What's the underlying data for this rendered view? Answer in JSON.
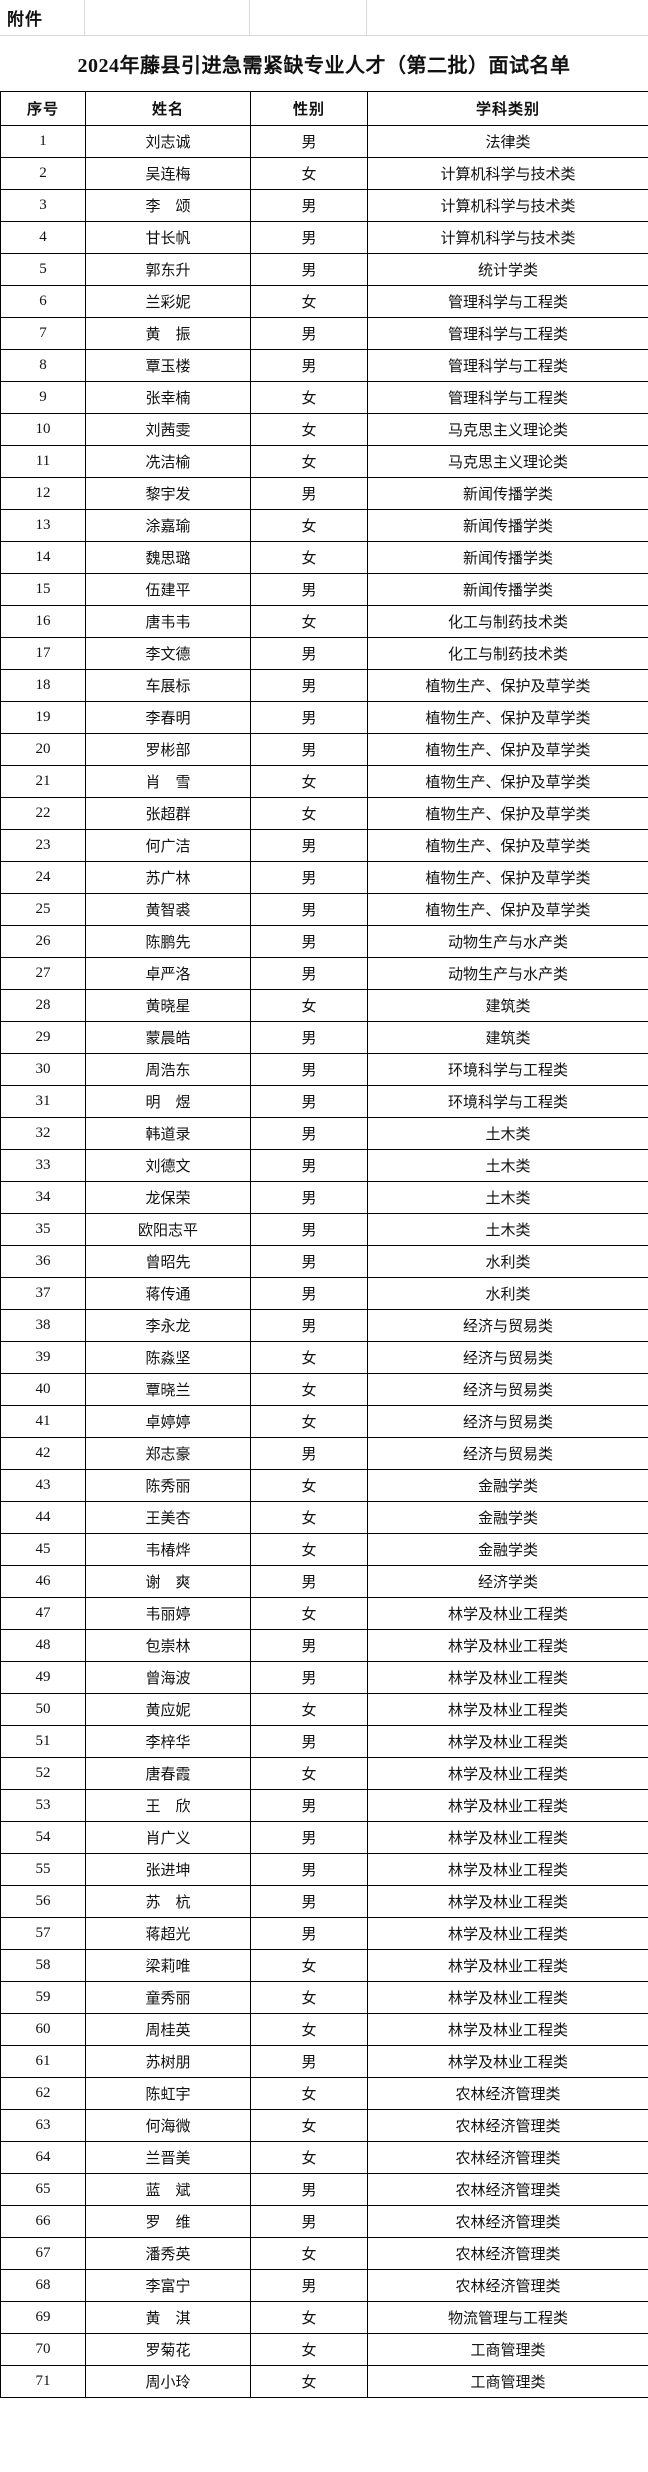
{
  "attachment_label": "附件",
  "title": "2024年藤县引进急需紧缺专业人才（第二批）面试名单",
  "table": {
    "columns": [
      "序号",
      "姓名",
      "性别",
      "学科类别"
    ],
    "rows": [
      [
        "1",
        "刘志诚",
        "男",
        "法律类"
      ],
      [
        "2",
        "吴连梅",
        "女",
        "计算机科学与技术类"
      ],
      [
        "3",
        "李　颂",
        "男",
        "计算机科学与技术类"
      ],
      [
        "4",
        "甘长帆",
        "男",
        "计算机科学与技术类"
      ],
      [
        "5",
        "郭东升",
        "男",
        "统计学类"
      ],
      [
        "6",
        "兰彩妮",
        "女",
        "管理科学与工程类"
      ],
      [
        "7",
        "黄　振",
        "男",
        "管理科学与工程类"
      ],
      [
        "8",
        "覃玉楼",
        "男",
        "管理科学与工程类"
      ],
      [
        "9",
        "张幸楠",
        "女",
        "管理科学与工程类"
      ],
      [
        "10",
        "刘茜雯",
        "女",
        "马克思主义理论类"
      ],
      [
        "11",
        "冼洁榆",
        "女",
        "马克思主义理论类"
      ],
      [
        "12",
        "黎宇发",
        "男",
        "新闻传播学类"
      ],
      [
        "13",
        "涂嘉瑜",
        "女",
        "新闻传播学类"
      ],
      [
        "14",
        "魏思璐",
        "女",
        "新闻传播学类"
      ],
      [
        "15",
        "伍建平",
        "男",
        "新闻传播学类"
      ],
      [
        "16",
        "唐韦韦",
        "女",
        "化工与制药技术类"
      ],
      [
        "17",
        "李文德",
        "男",
        "化工与制药技术类"
      ],
      [
        "18",
        "车展标",
        "男",
        "植物生产、保护及草学类"
      ],
      [
        "19",
        "李春明",
        "男",
        "植物生产、保护及草学类"
      ],
      [
        "20",
        "罗彬部",
        "男",
        "植物生产、保护及草学类"
      ],
      [
        "21",
        "肖　雪",
        "女",
        "植物生产、保护及草学类"
      ],
      [
        "22",
        "张超群",
        "女",
        "植物生产、保护及草学类"
      ],
      [
        "23",
        "何广洁",
        "男",
        "植物生产、保护及草学类"
      ],
      [
        "24",
        "苏广林",
        "男",
        "植物生产、保护及草学类"
      ],
      [
        "25",
        "黄智裘",
        "男",
        "植物生产、保护及草学类"
      ],
      [
        "26",
        "陈鹏先",
        "男",
        "动物生产与水产类"
      ],
      [
        "27",
        "卓严洛",
        "男",
        "动物生产与水产类"
      ],
      [
        "28",
        "黄晓星",
        "女",
        "建筑类"
      ],
      [
        "29",
        "蒙晨皓",
        "男",
        "建筑类"
      ],
      [
        "30",
        "周浩东",
        "男",
        "环境科学与工程类"
      ],
      [
        "31",
        "明　煜",
        "男",
        "环境科学与工程类"
      ],
      [
        "32",
        "韩道录",
        "男",
        "土木类"
      ],
      [
        "33",
        "刘德文",
        "男",
        "土木类"
      ],
      [
        "34",
        "龙保荣",
        "男",
        "土木类"
      ],
      [
        "35",
        "欧阳志平",
        "男",
        "土木类"
      ],
      [
        "36",
        "曾昭先",
        "男",
        "水利类"
      ],
      [
        "37",
        "蒋传通",
        "男",
        "水利类"
      ],
      [
        "38",
        "李永龙",
        "男",
        "经济与贸易类"
      ],
      [
        "39",
        "陈淼坚",
        "女",
        "经济与贸易类"
      ],
      [
        "40",
        "覃晓兰",
        "女",
        "经济与贸易类"
      ],
      [
        "41",
        "卓婷婷",
        "女",
        "经济与贸易类"
      ],
      [
        "42",
        "郑志豪",
        "男",
        "经济与贸易类"
      ],
      [
        "43",
        "陈秀丽",
        "女",
        "金融学类"
      ],
      [
        "44",
        "王美杏",
        "女",
        "金融学类"
      ],
      [
        "45",
        "韦椿烨",
        "女",
        "金融学类"
      ],
      [
        "46",
        "谢　爽",
        "男",
        "经济学类"
      ],
      [
        "47",
        "韦丽婷",
        "女",
        "林学及林业工程类"
      ],
      [
        "48",
        "包崇林",
        "男",
        "林学及林业工程类"
      ],
      [
        "49",
        "曾海波",
        "男",
        "林学及林业工程类"
      ],
      [
        "50",
        "黄应妮",
        "女",
        "林学及林业工程类"
      ],
      [
        "51",
        "李梓华",
        "男",
        "林学及林业工程类"
      ],
      [
        "52",
        "唐春霞",
        "女",
        "林学及林业工程类"
      ],
      [
        "53",
        "王　欣",
        "男",
        "林学及林业工程类"
      ],
      [
        "54",
        "肖广义",
        "男",
        "林学及林业工程类"
      ],
      [
        "55",
        "张进坤",
        "男",
        "林学及林业工程类"
      ],
      [
        "56",
        "苏　杭",
        "男",
        "林学及林业工程类"
      ],
      [
        "57",
        "蒋超光",
        "男",
        "林学及林业工程类"
      ],
      [
        "58",
        "梁莉唯",
        "女",
        "林学及林业工程类"
      ],
      [
        "59",
        "童秀丽",
        "女",
        "林学及林业工程类"
      ],
      [
        "60",
        "周桂英",
        "女",
        "林学及林业工程类"
      ],
      [
        "61",
        "苏树朋",
        "男",
        "林学及林业工程类"
      ],
      [
        "62",
        "陈虹宇",
        "女",
        "农林经济管理类"
      ],
      [
        "63",
        "何海微",
        "女",
        "农林经济管理类"
      ],
      [
        "64",
        "兰晋美",
        "女",
        "农林经济管理类"
      ],
      [
        "65",
        "蓝　斌",
        "男",
        "农林经济管理类"
      ],
      [
        "66",
        "罗　维",
        "男",
        "农林经济管理类"
      ],
      [
        "67",
        "潘秀英",
        "女",
        "农林经济管理类"
      ],
      [
        "68",
        "李富宁",
        "男",
        "农林经济管理类"
      ],
      [
        "69",
        "黄　淇",
        "女",
        "物流管理与工程类"
      ],
      [
        "70",
        "罗菊花",
        "女",
        "工商管理类"
      ],
      [
        "71",
        "周小玲",
        "女",
        "工商管理类"
      ]
    ]
  }
}
